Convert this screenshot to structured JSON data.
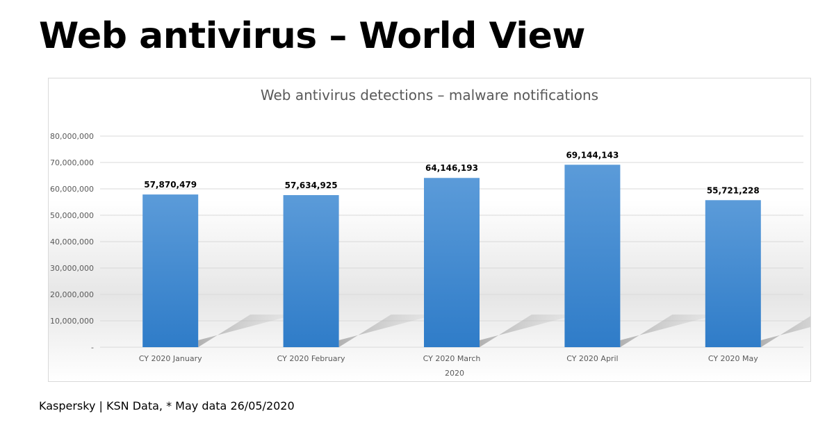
{
  "slide": {
    "title": "Web antivirus – World View",
    "footer": "Kaspersky | KSN Data, * May data 26/05/2020"
  },
  "chart_data": {
    "type": "bar",
    "title": "Web antivirus detections – malware notifications",
    "xlabel": "2020",
    "ylabel": "",
    "categories": [
      "CY 2020 January",
      "CY 2020 February",
      "CY 2020 March",
      "CY 2020 April",
      "CY 2020 May"
    ],
    "values": [
      57870479,
      57634925,
      64146193,
      69144143,
      55721228
    ],
    "data_labels": [
      "57,870,479",
      "57,634,925",
      "64,146,193",
      "69,144,143",
      "55,721,228"
    ],
    "ylim": [
      0,
      80000000
    ],
    "yticks": [
      0,
      10000000,
      20000000,
      30000000,
      40000000,
      50000000,
      60000000,
      70000000,
      80000000
    ],
    "ytick_labels": [
      "-",
      "10,000,000",
      "20,000,000",
      "30,000,000",
      "40,000,000",
      "50,000,000",
      "60,000,000",
      "70,000,000",
      "80,000,000"
    ],
    "grid": true,
    "legend": "none",
    "bar_color": "#4a8fd4"
  }
}
